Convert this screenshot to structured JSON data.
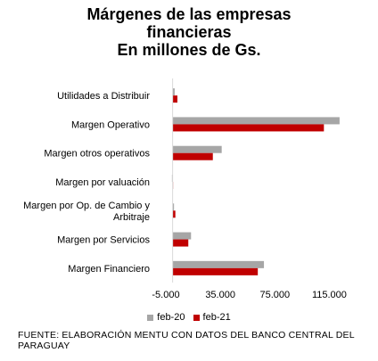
{
  "chart_data": {
    "type": "bar",
    "orientation": "horizontal",
    "title_lines": [
      "Márgenes de las empresas",
      "financieras",
      "En millones de Gs."
    ],
    "categories": [
      "Utilidades a Distribuir",
      "Margen Operativo",
      "Margen otros operativos",
      "Margen por valuación",
      "Margen por Op. de Cambio y Arbitraje",
      "Margen por Servicios",
      "Margen Financiero"
    ],
    "series": [
      {
        "name": "feb-20",
        "color": "#a6a6a6",
        "values": [
          1500,
          122500,
          36000,
          -500,
          1000,
          13500,
          67000
        ]
      },
      {
        "name": "feb-21",
        "color": "#c00000",
        "values": [
          3500,
          111000,
          29500,
          0,
          2000,
          11500,
          62500
        ]
      }
    ],
    "x_ticks": [
      "-5.000",
      "35.000",
      "75.000",
      "115.000"
    ],
    "xlim": [
      -5000,
      135000
    ],
    "grid": false,
    "legend_position": "bottom",
    "source": "FUENTE: ELABORACIÓN MENTU CON DATOS DEL BANCO CENTRAL DEL PARAGUAY"
  }
}
